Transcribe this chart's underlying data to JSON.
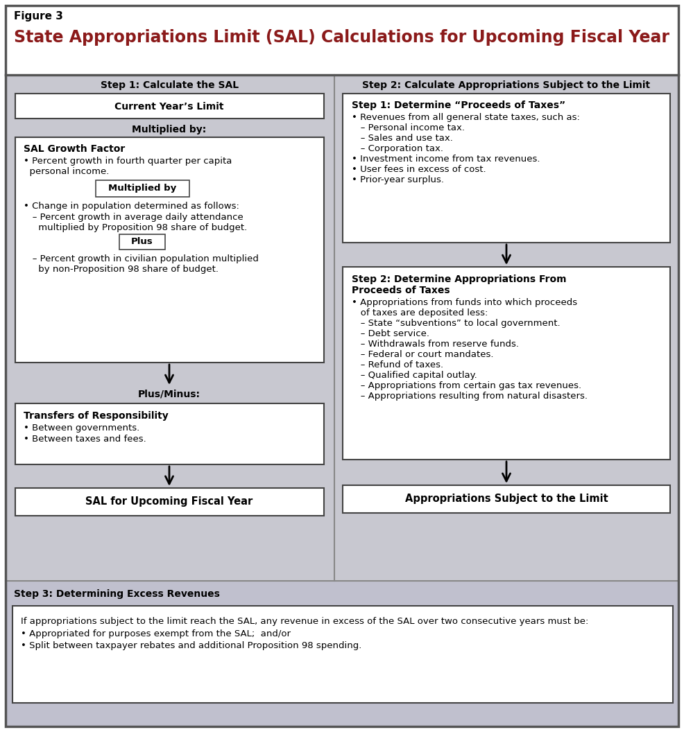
{
  "figure_label": "Figure 3",
  "title": "State Appropriations Limit (SAL) Calculations for Upcoming Fiscal Year",
  "title_color": "#8B1A1A",
  "step1_header": "Step 1: Calculate the SAL",
  "step2_header": "Step 2: Calculate Appropriations Subject to the Limit",
  "step3_header": "Step 3: Determining Excess Revenues",
  "box1_text": "Current Year’s Limit",
  "label_multiplied_by": "Multiplied by:",
  "sal_growth_box_title": "SAL Growth Factor",
  "sal_growth_line1": "• Percent growth in fourth quarter per capita",
  "sal_growth_line2": "  personal income.",
  "multiplied_by_inner": "Multiplied by",
  "sal_growth_line3": "• Change in population determined as follows:",
  "sal_growth_line4": "   – Percent growth in average daily attendance",
  "sal_growth_line5": "     multiplied by Proposition 98 share of budget.",
  "plus_inner": "Plus",
  "sal_growth_line6": "   – Percent growth in civilian population multiplied",
  "sal_growth_line7": "     by non-Proposition 98 share of budget.",
  "label_plus_minus": "Plus/Minus:",
  "transfers_box_title": "Transfers of Responsibility",
  "transfers_line1": "• Between governments.",
  "transfers_line2": "• Between taxes and fees.",
  "sal_result_text": "SAL for Upcoming Fiscal Year",
  "step2_sub1_title": "Step 1: Determine “Proceeds of Taxes”",
  "step2_sub1_lines": [
    "• Revenues from all general state taxes, such as:",
    "   – Personal income tax.",
    "   – Sales and use tax.",
    "   – Corporation tax.",
    "• Investment income from tax revenues.",
    "• User fees in excess of cost.",
    "• Prior-year surplus."
  ],
  "step2_sub2_title": "Step 2: Determine Appropriations From",
  "step2_sub2_title2": "Proceeds of Taxes",
  "step2_sub2_lines": [
    "• Appropriations from funds into which proceeds",
    "   of taxes are deposited less:",
    "   – State “subventions” to local government.",
    "   – Debt service.",
    "   – Withdrawals from reserve funds.",
    "   – Federal or court mandates.",
    "   – Refund of taxes.",
    "   – Qualified capital outlay.",
    "   – Appropriations from certain gas tax revenues.",
    "   – Appropriations resulting from natural disasters."
  ],
  "appropriations_result_text": "Appropriations Subject to the Limit",
  "step3_box_line1": "If appropriations subject to the limit reach the SAL, any revenue in excess of the SAL over two consecutive years must be:",
  "step3_box_line2": "• Appropriated for purposes exempt from the SAL;  and/or",
  "step3_box_line3": "• Split between taxpayer rebates and additional Proposition 98 spending.",
  "bg_gray_panel": "#c8c8d0",
  "bg_step3": "#c0c0ce",
  "border_color": "#555555",
  "divider_color": "#888888",
  "box_border": "#444444"
}
